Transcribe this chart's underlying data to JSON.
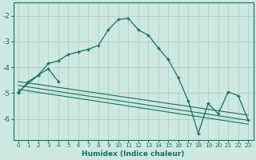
{
  "bg_color": "#cce8e0",
  "grid_color": "#aaccc4",
  "line_color": "#1a7060",
  "x_label": "Humidex (Indice chaleur)",
  "xlim": [
    -0.5,
    23.5
  ],
  "ylim": [
    -6.8,
    -1.5
  ],
  "yticks": [
    -6,
    -5,
    -4,
    -3,
    -2
  ],
  "xticks": [
    0,
    1,
    2,
    3,
    4,
    5,
    6,
    7,
    8,
    9,
    10,
    11,
    12,
    13,
    14,
    15,
    16,
    17,
    18,
    19,
    20,
    21,
    22,
    23
  ],
  "curve1_x": [
    0,
    1,
    2,
    3,
    4,
    5,
    6,
    7,
    8,
    9,
    10,
    11,
    12,
    13,
    14,
    15,
    16,
    17,
    18,
    19,
    20,
    21,
    22,
    23
  ],
  "curve1_y": [
    -5.0,
    -4.55,
    -4.3,
    -3.85,
    -3.75,
    -3.5,
    -3.4,
    -3.3,
    -3.15,
    -2.55,
    -2.15,
    -2.1,
    -2.55,
    -2.75,
    -3.25,
    -3.7,
    -4.4,
    -5.3,
    -6.55,
    -5.4,
    -5.8,
    -4.95,
    -5.1,
    -6.05
  ],
  "curve2_x": [
    0,
    2,
    3,
    4
  ],
  "curve2_y": [
    -4.95,
    -4.3,
    -4.05,
    -4.55
  ],
  "line1_x": [
    0,
    23
  ],
  "line1_y": [
    -4.55,
    -5.85
  ],
  "line2_x": [
    0,
    23
  ],
  "line2_y": [
    -4.7,
    -6.05
  ],
  "line3_x": [
    0,
    23
  ],
  "line3_y": [
    -4.85,
    -6.2
  ]
}
